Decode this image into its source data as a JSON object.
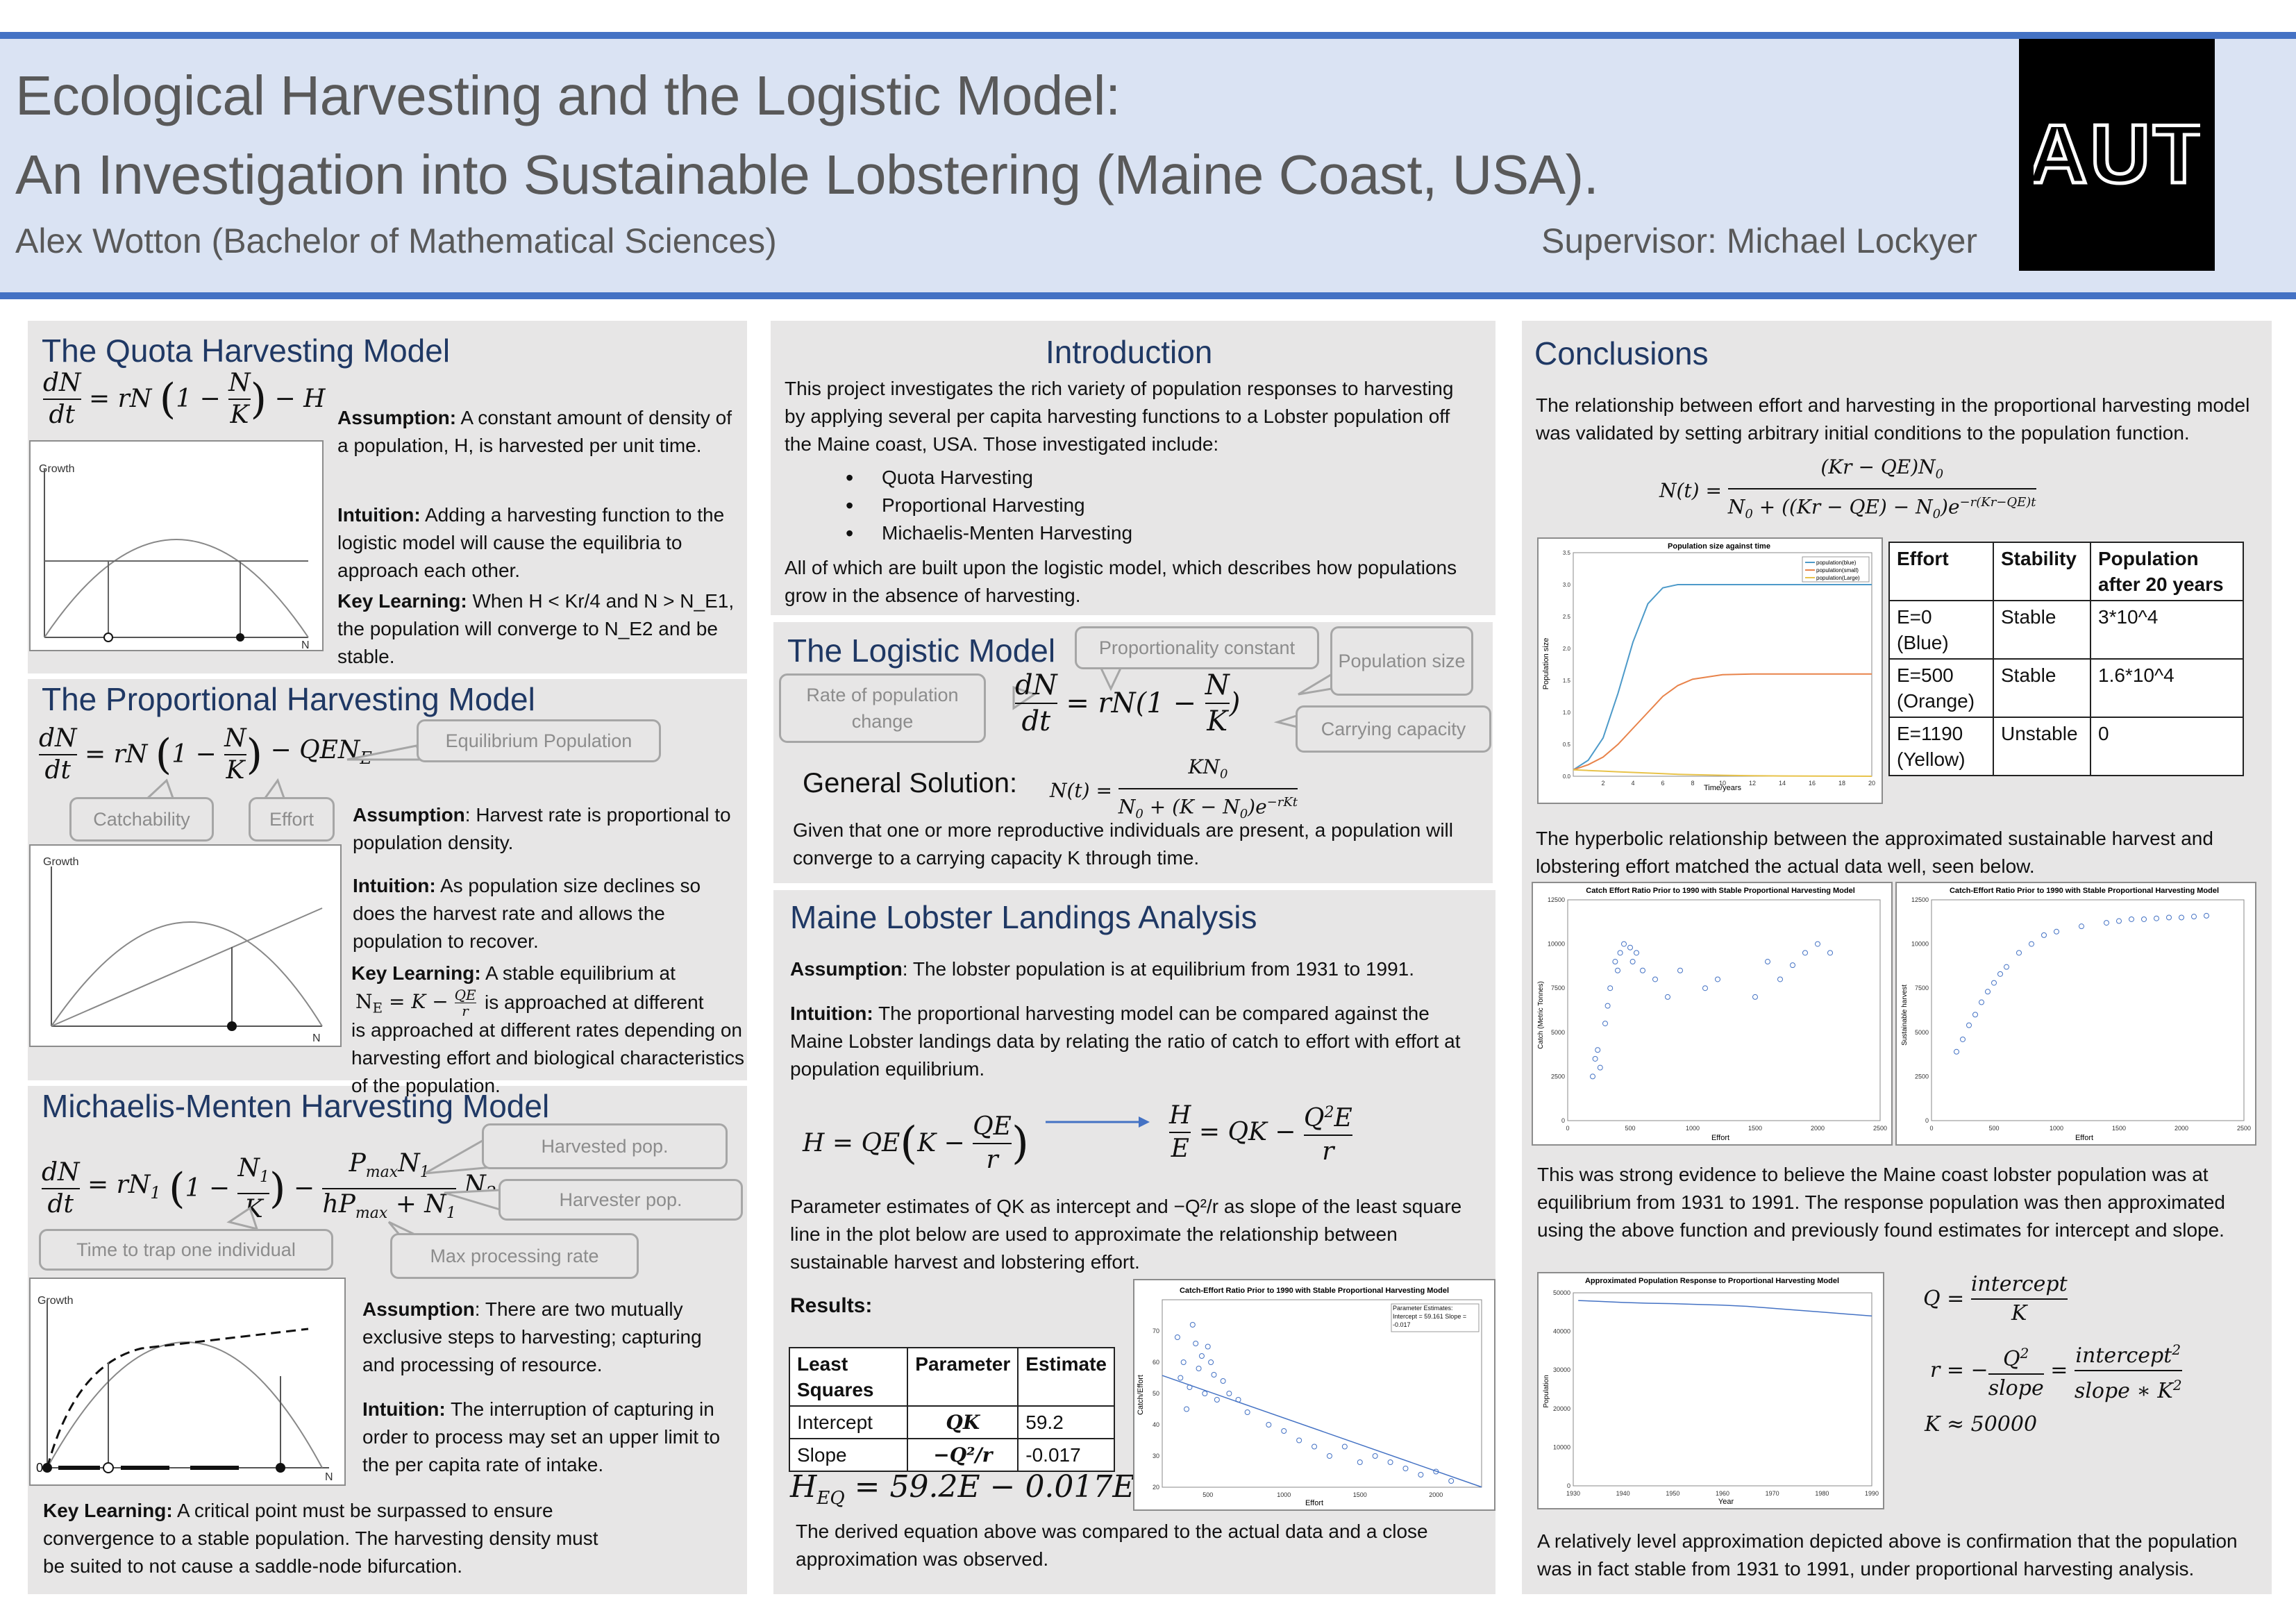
{
  "header": {
    "title_line1": "Ecological Harvesting and the Logistic Model:",
    "title_line2": "An Investigation into Sustainable Lobstering (Maine Coast, USA).",
    "author": "Alex Wotton (Bachelor of Mathematical Sciences)",
    "supervisor": "Supervisor: Michael Lockyer",
    "logo_text": "AUT"
  },
  "quota": {
    "heading": "The Quota Harvesting Model",
    "equation": "dN/dt = rN(1 − N/K) − H",
    "assumption_label": "Assumption:",
    "assumption_text": " A constant amount of density of a population, H, is harvested per unit time.",
    "intuition_label": "Intuition:",
    "intuition_text": " Adding a harvesting function to the logistic model will cause the equilibria to approach each other.",
    "key_label": "Key Learning:",
    "key_text": " When H < Kr/4 and N > N_E1, the population will converge to N_E2 and be stable.",
    "graph_y": "Growth",
    "graph_x": "N"
  },
  "proportional": {
    "heading": "The Proportional Harvesting Model",
    "equation": "dN/dt = rN(1 − N/K) − QEN_E",
    "callout_equilibrium": "Equilibrium Population",
    "callout_catchability": "Catchability",
    "callout_effort": "Effort",
    "assumption_label": "Assumption",
    "assumption_text": ": Harvest rate is proportional to population density.",
    "intuition_label": "Intuition:",
    "intuition_text": " As population size declines so does the harvest rate and allows the population to recover.",
    "key_label": "Key Learning:",
    "key_text": " A stable equilibrium at",
    "key_eq": "N_E = K − QE/r",
    "key_text2": "is approached at different rates depending on harvesting effort and biological characteristics of the population.",
    "graph_y": "Growth",
    "graph_x": "N"
  },
  "mm": {
    "heading": "Michaelis-Menten Harvesting Model",
    "equation": "dN/dt = rN1(1 − N1/K) − PmaxN1/(hPmax + N1) N2",
    "callout_harvested": "Harvested pop.",
    "callout_harvester": "Harvester pop.",
    "callout_time": "Time to trap one individual",
    "callout_max": "Max processing rate",
    "assumption_label": "Assumption",
    "assumption_text": ": There are two mutually exclusive steps to harvesting; capturing and processing of resource.",
    "intuition_label": "Intuition:",
    "intuition_text": " The interruption of capturing in order to process may set an upper limit to the per capita rate of intake.",
    "key_label": "Key Learning:",
    "key_text": " A critical point must be surpassed to ensure convergence to a stable population. The harvesting density must be suited to not cause a saddle-node bifurcation.",
    "graph_y": "Growth",
    "graph_x": "N",
    "graph_zero": "0"
  },
  "intro": {
    "heading": "Introduction",
    "text": "This project investigates the rich variety of population responses to harvesting by applying several per capita harvesting functions to a Lobster population off the Maine coast, USA. Those investigated include:",
    "items": [
      "Quota Harvesting",
      "Proportional Harvesting",
      "Michaelis-Menten Harvesting"
    ],
    "text2": "All of which are built upon the logistic model, which describes how populations grow in the absence of harvesting."
  },
  "logistic": {
    "heading": "The Logistic Model",
    "callout_prop": "Proportionality constant",
    "callout_rate": "Rate of population change",
    "callout_pop": "Population size",
    "callout_cap": "Carrying capacity",
    "equation": "dN/dt = rN(1 − N/K)",
    "general_label": "General Solution:",
    "general_eq": "N(t) = KN0 / (N0 + (K − N0)e^(−rKt))",
    "text": "Given that one or more reproductive individuals are present, a population will converge to a carrying capacity K through time."
  },
  "maine": {
    "heading": "Maine Lobster Landings Analysis",
    "assumption_label": "Assumption",
    "assumption_text": ": The lobster population is at equilibrium from 1931 to 1991.",
    "intuition_label": "Intuition:",
    "intuition_text": " The proportional harvesting model can be compared against the Maine Lobster landings data by relating the ratio of catch to effort with effort at population equilibrium.",
    "eq1": "H = QE(K − QE/r)",
    "eq2": "H/E = QK − Q²E/r",
    "param_text": "Parameter estimates of QK as intercept and −Q²/r as slope of the least square line in the plot below are used to approximate the relationship between sustainable harvest and lobstering effort.",
    "results_label": "Results:",
    "table": {
      "headers": [
        "Least Squares",
        "Parameter",
        "Estimate"
      ],
      "rows": [
        [
          "Intercept",
          "QK",
          "59.2"
        ],
        [
          "Slope",
          "−Q²/r",
          "-0.017"
        ]
      ]
    },
    "heq": "H_EQ = 59.2E − 0.017E²",
    "final_text": "The derived equation above was compared to the actual data and a close approximation was observed."
  },
  "conclusions": {
    "heading": "Conclusions",
    "text1": "The relationship between effort and harvesting in the proportional harvesting model was validated by setting arbitrary initial conditions to the population function.",
    "eq": "N(t) = (Kr − QE)N0 / (N0 + ((Kr − QE) − N0)e^(−r(Kr−QE)t))",
    "table": {
      "headers": [
        "Effort",
        "Stability",
        "Population after 20 years"
      ],
      "rows": [
        [
          "E=0 (Blue)",
          "Stable",
          "3*10^4"
        ],
        [
          "E=500 (Orange)",
          "Stable",
          "1.6*10^4"
        ],
        [
          "E=1190 (Yellow)",
          "Unstable",
          "0"
        ]
      ]
    },
    "text2": "The hyperbolic relationship between the approximated sustainable harvest and lobstering effort matched the actual data well, seen below.",
    "text3": "This was strong evidence to believe the Maine coast lobster population was at equilibrium from 1931 to 1991. The response population was then approximated using the above function and previously found estimates for intercept and slope.",
    "q_eq": "Q = intercept / K",
    "r_eq": "r = −Q²/slope = intercept²/(slope * K²)",
    "k_eq": "K ≈ 50000",
    "text4": "A relatively level approximation depicted above is confirmation that the population was in fact stable from 1931 to 1991, under proportional harvesting analysis."
  },
  "charts": {
    "popsize": {
      "title": "Population size against time",
      "xlabel": "Time/years",
      "ylabel": "Population size",
      "legend": [
        "population(blue)",
        "population(small)",
        "population(Large)"
      ]
    },
    "ratio1": {
      "title": "Catch-Effort Ratio Prior to 1990 with Stable Proportional Harvesting Model",
      "xlabel": "Effort",
      "ylabel": "Catch/Effort",
      "note": "Parameter Estimates: Intercept = 59.161 Slope = -0.017"
    },
    "cat1": {
      "title": "Catch Effort Ratio Prior to 1990 with Stable Proportional Harvesting Model",
      "xlabel": "Effort",
      "ylabel": "Catch (Metric Tonnes)"
    },
    "cat2": {
      "title": "Catch-Effort Ratio Prior to 1990 with Stable Proportional Harvesting Model",
      "xlabel": "Effort",
      "ylabel": "Sustainable harvest"
    },
    "resp": {
      "title": "Approximated Population Response to Proportional Harvesting Model",
      "xlabel": "Year",
      "ylabel": "Population"
    }
  },
  "chart_data": [
    {
      "type": "line",
      "title": "Population size against time",
      "xlabel": "Time/years",
      "ylabel": "Population size",
      "xlim": [
        0,
        20
      ],
      "ylim": [
        0,
        35000
      ],
      "x": [
        0,
        1,
        2,
        3,
        4,
        5,
        6,
        7,
        8,
        10,
        12,
        14,
        16,
        18,
        20
      ],
      "series": [
        {
          "name": "population(blue)",
          "values": [
            1000,
            2500,
            6000,
            13000,
            21000,
            27000,
            29500,
            30000,
            30000,
            30000,
            30000,
            30000,
            30000,
            30000,
            30000
          ]
        },
        {
          "name": "population(small)",
          "values": [
            1000,
            1800,
            3000,
            5000,
            7500,
            10000,
            12500,
            14200,
            15200,
            15900,
            16000,
            16000,
            16000,
            16000,
            16000
          ]
        },
        {
          "name": "population(Large)",
          "values": [
            1000,
            900,
            800,
            700,
            600,
            500,
            400,
            300,
            250,
            150,
            80,
            40,
            20,
            10,
            0
          ]
        }
      ]
    },
    {
      "type": "scatter",
      "title": "Catch-Effort Ratio Prior to 1990 with Stable Proportional Harvesting Model",
      "xlabel": "Effort",
      "ylabel": "Catch/Effort",
      "ylim": [
        20,
        80
      ],
      "x": [
        300,
        320,
        340,
        360,
        380,
        400,
        420,
        440,
        460,
        480,
        500,
        520,
        540,
        560,
        600,
        640,
        700,
        760,
        900,
        1000,
        1100,
        1200,
        1300,
        1400,
        1500,
        1600,
        1700,
        1800,
        1900,
        2000,
        2100
      ],
      "values": [
        68,
        55,
        60,
        45,
        52,
        72,
        66,
        58,
        62,
        50,
        65,
        60,
        56,
        48,
        54,
        50,
        48,
        44,
        40,
        38,
        35,
        33,
        30,
        33,
        28,
        30,
        28,
        26,
        24,
        25,
        22
      ]
    },
    {
      "type": "scatter",
      "title": "Catch Effort Ratio Prior to 1990 with Stable Proportional Harvesting Model",
      "xlabel": "Effort",
      "ylabel": "Catch (Metric Tonnes)",
      "xlim": [
        0,
        2500
      ],
      "ylim": [
        0,
        12500
      ],
      "x": [
        200,
        220,
        240,
        260,
        300,
        320,
        340,
        380,
        400,
        420,
        450,
        500,
        520,
        550,
        600,
        700,
        800,
        900,
        1100,
        1200,
        1500,
        1600,
        1700,
        1800,
        1900,
        2000,
        2100
      ],
      "values": [
        2500,
        3500,
        4000,
        3000,
        5500,
        6500,
        7500,
        9000,
        8500,
        9500,
        10000,
        9800,
        9000,
        9500,
        8500,
        8000,
        7000,
        8500,
        7500,
        8000,
        7000,
        9000,
        8000,
        8800,
        9500,
        10000,
        9500
      ]
    },
    {
      "type": "scatter",
      "title": "Catch-Effort Ratio Prior to 1990 with Stable Proportional Harvesting Model",
      "xlabel": "Effort",
      "ylabel": "Sustainable harvest",
      "xlim": [
        0,
        2500
      ],
      "ylim": [
        0,
        12500
      ],
      "x": [
        200,
        250,
        300,
        350,
        400,
        450,
        500,
        550,
        600,
        700,
        800,
        900,
        1000,
        1200,
        1400,
        1500,
        1600,
        1700,
        1800,
        1900,
        2000,
        2100,
        2200
      ],
      "values": [
        3900,
        4600,
        5400,
        6000,
        6700,
        7300,
        7800,
        8300,
        8700,
        9500,
        10000,
        10500,
        10700,
        11000,
        11200,
        11300,
        11400,
        11400,
        11450,
        11500,
        11500,
        11550,
        11600
      ]
    },
    {
      "type": "line",
      "title": "Approximated Population Response to Proportional Harvesting Model",
      "xlabel": "Year",
      "ylabel": "Population",
      "xlim": [
        1930,
        1990
      ],
      "ylim": [
        0,
        50000
      ],
      "x": [
        1931,
        1935,
        1940,
        1945,
        1950,
        1955,
        1960,
        1965,
        1970,
        1975,
        1980,
        1985,
        1990
      ],
      "series": [
        {
          "values": [
            48000,
            47800,
            47500,
            47300,
            47200,
            47000,
            46800,
            46500,
            46000,
            45500,
            45000,
            44500,
            44000
          ]
        }
      ]
    }
  ]
}
